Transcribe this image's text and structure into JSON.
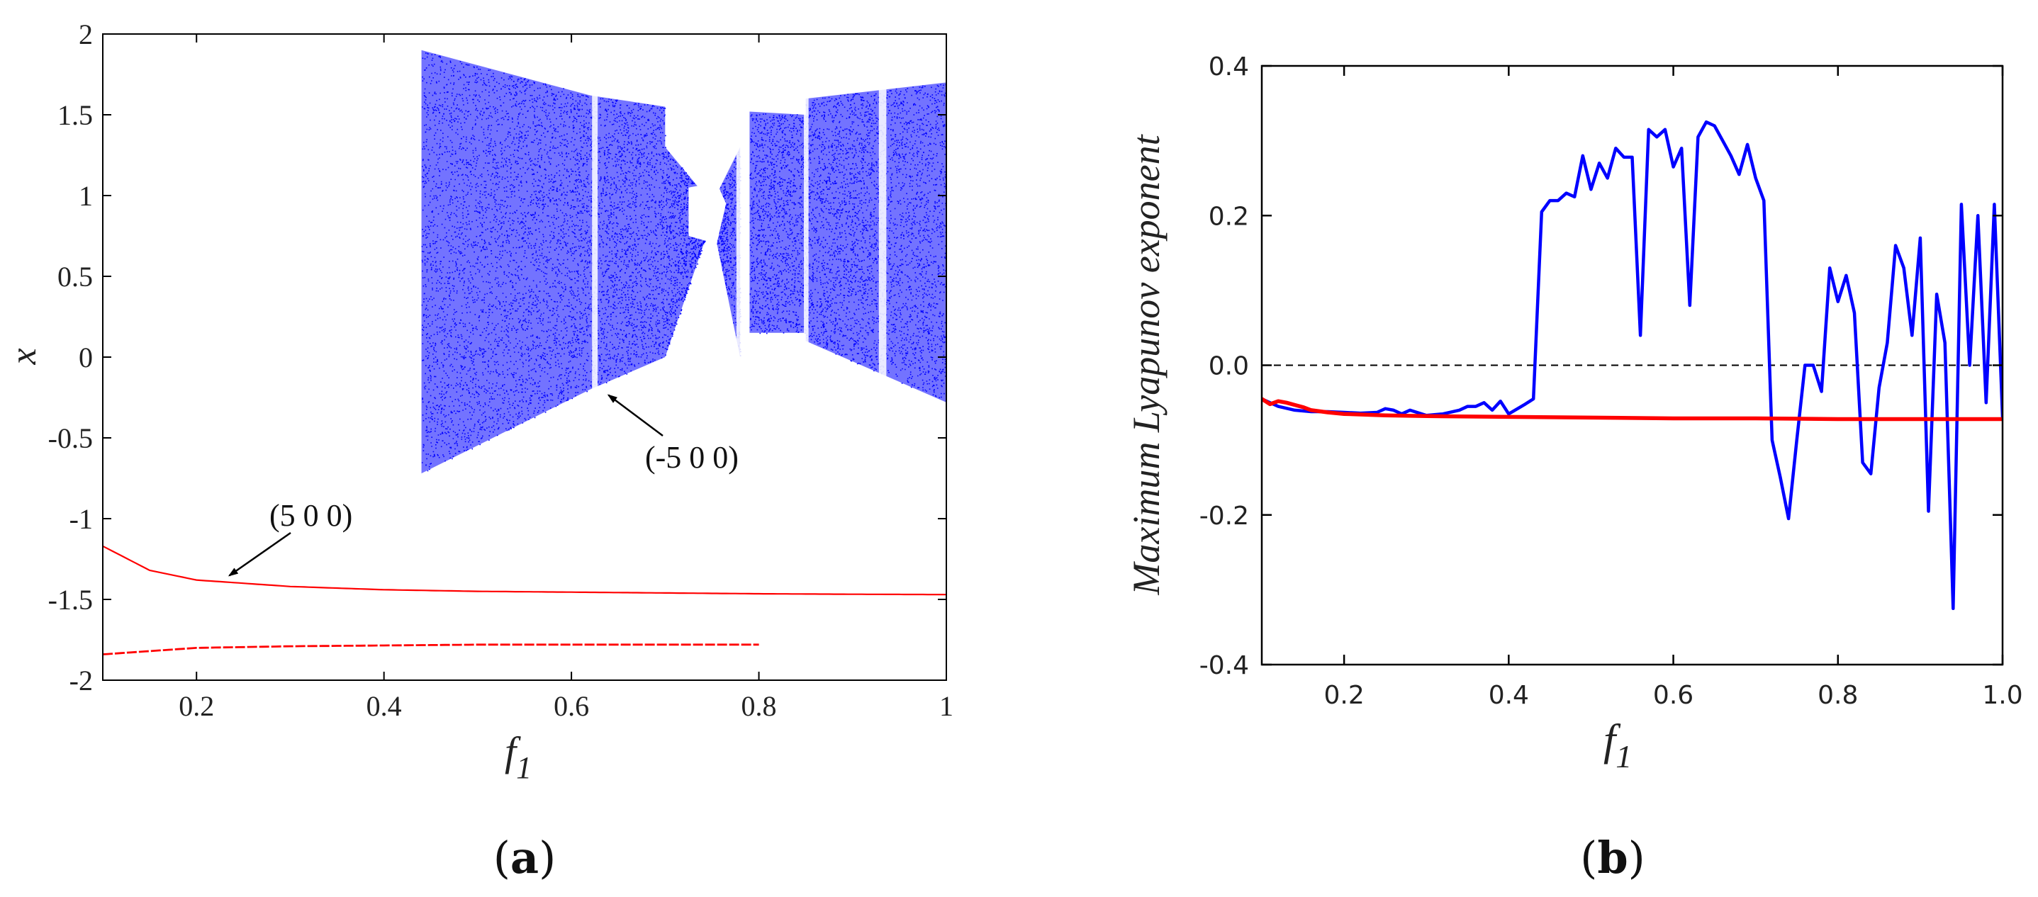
{
  "chart_data": [
    {
      "type": "scatter",
      "panel_label": "(a)",
      "panel_letter": "a",
      "xlabel": "f",
      "xlabel_sub": "1",
      "ylabel": "x",
      "xlim": [
        0.1,
        1.0
      ],
      "ylim": [
        -2,
        2
      ],
      "xticks": [
        0.2,
        0.4,
        0.6,
        0.8,
        1.0
      ],
      "xtick_labels": [
        "0.2",
        "0.4",
        "0.6",
        "0.8",
        "1"
      ],
      "yticks": [
        2,
        1.5,
        1,
        0.5,
        0,
        -0.5,
        -1,
        -1.5,
        -2
      ],
      "ytick_labels": [
        "2",
        "1.5",
        "1",
        "0.5",
        "0",
        "-0.5",
        "-1",
        "-1.5",
        "-2"
      ],
      "colors": {
        "chaotic": "#0000ff",
        "periodic": "#ff0000"
      },
      "series": [
        {
          "name": "(-5 0 0)",
          "color": "#0000ff",
          "kind": "bifurcation",
          "x_range": [
            0.44,
            1.0
          ],
          "bands": [
            {
              "x": [
                0.44,
                0.62
              ],
              "upper": [
                1.9,
                1.62
              ],
              "lower": [
                -0.72,
                -0.2
              ]
            },
            {
              "x": [
                0.62,
                0.7
              ],
              "upper": [
                1.62,
                1.55
              ],
              "lower": [
                -0.2,
                0.0
              ]
            },
            {
              "x": [
                0.7,
                0.75
              ],
              "upper": [
                1.3,
                0.95
              ],
              "lower": [
                0.0,
                0.85
              ]
            },
            {
              "x": [
                0.75,
                0.78
              ],
              "upper": [
                0.95,
                1.3
              ],
              "lower": [
                0.85,
                0.0
              ]
            },
            {
              "x": [
                0.79,
                0.85
              ],
              "upper": [
                1.52,
                1.5
              ],
              "lower": [
                0.15,
                0.15
              ]
            },
            {
              "x": [
                0.85,
                1.0
              ],
              "upper": [
                1.6,
                1.7
              ],
              "lower": [
                0.1,
                -0.28
              ]
            }
          ]
        },
        {
          "name": "(5 0 0) upper branch",
          "color": "#ff0000",
          "x": [
            0.1,
            0.15,
            0.2,
            0.3,
            0.4,
            0.5,
            0.6,
            0.7,
            0.8,
            0.9,
            1.0
          ],
          "y": [
            -1.17,
            -1.32,
            -1.38,
            -1.42,
            -1.44,
            -1.45,
            -1.455,
            -1.46,
            -1.465,
            -1.468,
            -1.47
          ]
        },
        {
          "name": "(5 0 0) lower branch",
          "color": "#ff0000",
          "x": [
            0.1,
            0.15,
            0.2,
            0.3,
            0.4,
            0.5,
            0.6,
            0.68,
            0.72,
            0.8
          ],
          "y": [
            -1.84,
            -1.82,
            -1.8,
            -1.79,
            -1.785,
            -1.78,
            -1.78,
            -1.78,
            -1.78,
            -1.78
          ]
        }
      ],
      "annotations": [
        {
          "text": "(5 0 0)",
          "target_x": 0.235,
          "target_y": -1.37
        },
        {
          "text": "(-5 0 0)",
          "target_x": 0.635,
          "target_y": -0.2
        }
      ]
    },
    {
      "type": "line",
      "panel_label": "(b)",
      "panel_letter": "b",
      "xlabel": "f",
      "xlabel_sub": "1",
      "ylabel": "Maximum Lyapunov exponent",
      "xlim": [
        0.1,
        1.0
      ],
      "ylim": [
        -0.4,
        0.4
      ],
      "xticks": [
        0.2,
        0.4,
        0.6,
        0.8,
        1.0
      ],
      "xtick_labels": [
        "0.2",
        "0.4",
        "0.6",
        "0.8",
        "1.0"
      ],
      "yticks": [
        0.4,
        0.2,
        0.0,
        -0.2,
        -0.4
      ],
      "ytick_labels": [
        "0.4",
        "0.2",
        "0.0",
        "-0.2",
        "-0.4"
      ],
      "reference_line": {
        "y": 0.0,
        "style": "dashed",
        "color": "#000000"
      },
      "series": [
        {
          "name": "(-5 0 0)",
          "color": "#0000ff",
          "x": [
            0.1,
            0.12,
            0.14,
            0.16,
            0.18,
            0.2,
            0.22,
            0.24,
            0.25,
            0.26,
            0.27,
            0.28,
            0.3,
            0.32,
            0.34,
            0.35,
            0.36,
            0.37,
            0.38,
            0.39,
            0.4,
            0.42,
            0.43,
            0.44,
            0.45,
            0.46,
            0.47,
            0.48,
            0.49,
            0.5,
            0.51,
            0.52,
            0.53,
            0.54,
            0.55,
            0.56,
            0.57,
            0.58,
            0.59,
            0.6,
            0.61,
            0.62,
            0.63,
            0.64,
            0.65,
            0.66,
            0.67,
            0.68,
            0.69,
            0.7,
            0.71,
            0.72,
            0.73,
            0.74,
            0.75,
            0.76,
            0.77,
            0.78,
            0.79,
            0.8,
            0.81,
            0.82,
            0.83,
            0.84,
            0.85,
            0.86,
            0.87,
            0.88,
            0.89,
            0.9,
            0.91,
            0.92,
            0.93,
            0.94,
            0.95,
            0.96,
            0.97,
            0.98,
            0.99,
            1.0
          ],
          "y": [
            -0.045,
            -0.055,
            -0.06,
            -0.062,
            -0.062,
            -0.063,
            -0.064,
            -0.063,
            -0.058,
            -0.06,
            -0.065,
            -0.06,
            -0.067,
            -0.065,
            -0.06,
            -0.055,
            -0.055,
            -0.05,
            -0.06,
            -0.048,
            -0.065,
            -0.052,
            -0.045,
            0.205,
            0.22,
            0.22,
            0.23,
            0.225,
            0.28,
            0.235,
            0.27,
            0.25,
            0.29,
            0.278,
            0.278,
            0.04,
            0.315,
            0.305,
            0.315,
            0.265,
            0.29,
            0.08,
            0.305,
            0.325,
            0.32,
            0.3,
            0.28,
            0.255,
            0.295,
            0.25,
            0.22,
            -0.1,
            -0.15,
            -0.205,
            -0.1,
            0.0,
            0.0,
            -0.035,
            0.13,
            0.085,
            0.12,
            0.07,
            -0.13,
            -0.145,
            -0.03,
            0.03,
            0.16,
            0.13,
            0.04,
            0.17,
            -0.195,
            0.095,
            0.03,
            -0.325,
            0.215,
            0.0,
            0.2,
            -0.05,
            0.215,
            -0.07
          ]
        },
        {
          "name": "(5 0 0)",
          "color": "#ff0000",
          "x": [
            0.1,
            0.11,
            0.12,
            0.13,
            0.14,
            0.15,
            0.16,
            0.18,
            0.2,
            0.25,
            0.3,
            0.4,
            0.5,
            0.6,
            0.7,
            0.8,
            0.9,
            1.0
          ],
          "y": [
            -0.045,
            -0.052,
            -0.048,
            -0.05,
            -0.053,
            -0.056,
            -0.06,
            -0.063,
            -0.065,
            -0.067,
            -0.068,
            -0.069,
            -0.07,
            -0.071,
            -0.071,
            -0.072,
            -0.072,
            -0.072
          ]
        }
      ]
    }
  ]
}
